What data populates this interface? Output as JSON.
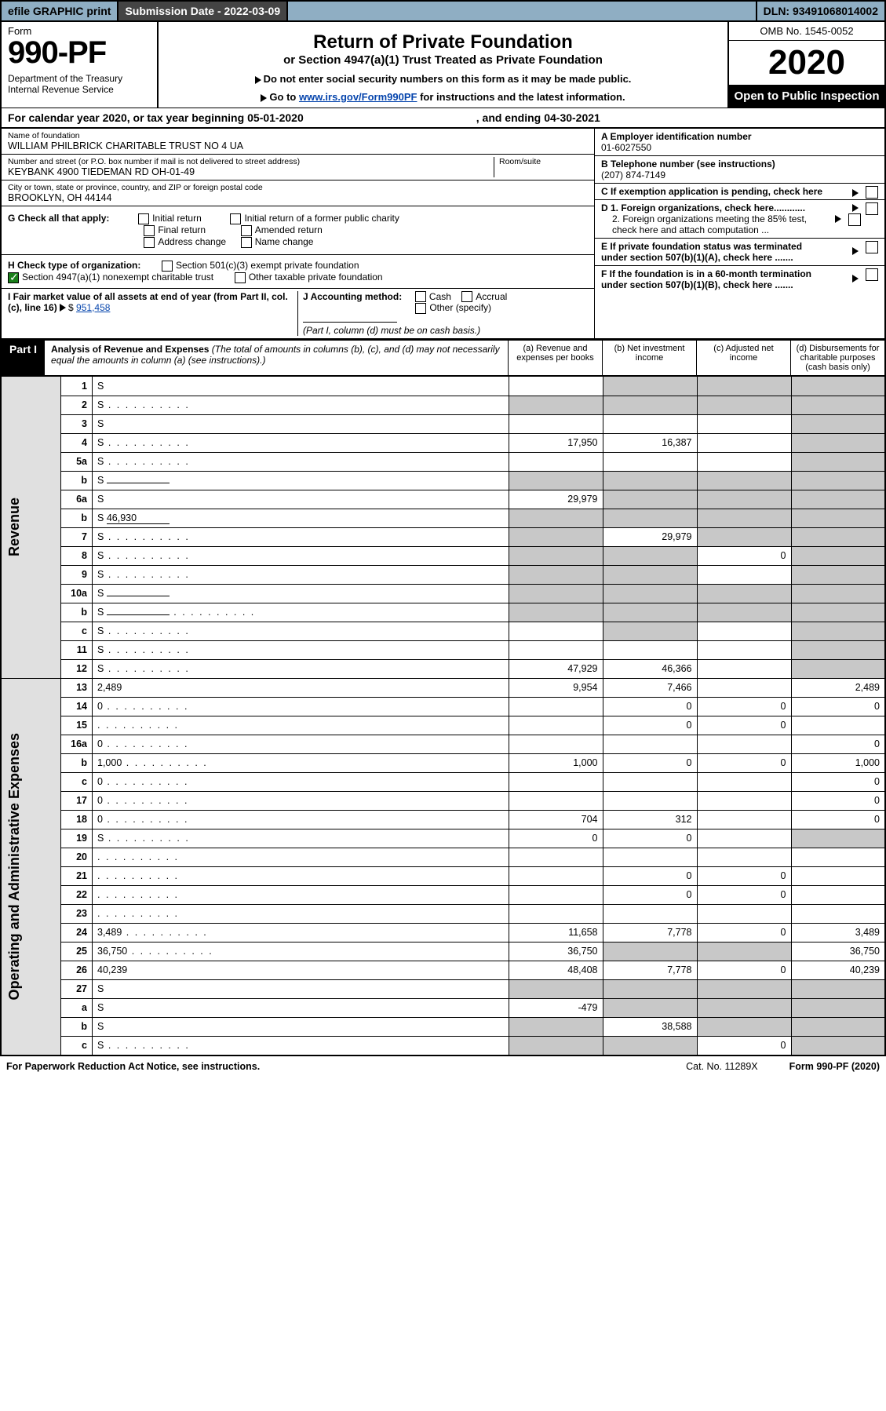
{
  "topbar": {
    "efile": "efile GRAPHIC print",
    "subdate_label": "Submission Date - 2022-03-09",
    "dln": "DLN: 93491068014002"
  },
  "header": {
    "form": "Form",
    "formno": "990-PF",
    "dept": "Department of the Treasury\nInternal Revenue Service",
    "title": "Return of Private Foundation",
    "subtitle": "or Section 4947(a)(1) Trust Treated as Private Foundation",
    "note1": "Do not enter social security numbers on this form as it may be made public.",
    "note2_pre": "Go to ",
    "note2_link": "www.irs.gov/Form990PF",
    "note2_post": " for instructions and the latest information.",
    "omb": "OMB No. 1545-0052",
    "year": "2020",
    "open": "Open to Public Inspection"
  },
  "calbar": {
    "pre": "For calendar year 2020, or tax year beginning ",
    "begin": "05-01-2020",
    "mid": ", and ending ",
    "end": "04-30-2021"
  },
  "info": {
    "name_lbl": "Name of foundation",
    "name": "WILLIAM PHILBRICK CHARITABLE TRUST NO 4 UA",
    "addr_lbl": "Number and street (or P.O. box number if mail is not delivered to street address)",
    "addr": "KEYBANK 4900 TIEDEMAN RD OH-01-49",
    "room_lbl": "Room/suite",
    "city_lbl": "City or town, state or province, country, and ZIP or foreign postal code",
    "city": "BROOKLYN, OH  44144",
    "a_lbl": "A Employer identification number",
    "a_val": "01-6027550",
    "b_lbl": "B Telephone number (see instructions)",
    "b_val": "(207) 874-7149",
    "c_lbl": "C If exemption application is pending, check here",
    "d1": "D 1. Foreign organizations, check here............",
    "d2": "2. Foreign organizations meeting the 85% test, check here and attach computation ...",
    "e": "E  If private foundation status was terminated under section 507(b)(1)(A), check here .......",
    "f": "F  If the foundation is in a 60-month termination under section 507(b)(1)(B), check here .......",
    "g_lbl": "G Check all that apply:",
    "g_opts": [
      "Initial return",
      "Final return",
      "Address change",
      "Initial return of a former public charity",
      "Amended return",
      "Name change"
    ],
    "h_lbl": "H Check type of organization:",
    "h1": "Section 501(c)(3) exempt private foundation",
    "h2": "Section 4947(a)(1) nonexempt charitable trust",
    "h3": "Other taxable private foundation",
    "i_lbl": "I Fair market value of all assets at end of year (from Part II, col. (c), line 16)",
    "i_val": "951,458",
    "j_lbl": "J Accounting method:",
    "j_opts": [
      "Cash",
      "Accrual",
      "Other (specify)"
    ],
    "j_note": "(Part I, column (d) must be on cash basis.)"
  },
  "part1": {
    "label": "Part I",
    "title": "Analysis of Revenue and Expenses",
    "note": "(The total of amounts in columns (b), (c), and (d) may not necessarily equal the amounts in column (a) (see instructions).)",
    "col_a": "(a)   Revenue and expenses per books",
    "col_b": "(b)   Net investment income",
    "col_c": "(c)   Adjusted net income",
    "col_d": "(d)   Disbursements for charitable purposes (cash basis only)"
  },
  "side_labels": {
    "rev": "Revenue",
    "oae": "Operating and Administrative Expenses"
  },
  "rows": [
    {
      "n": "1",
      "d": "S",
      "a": "",
      "b": "S",
      "c": "S"
    },
    {
      "n": "2",
      "d": "S",
      "dots": true,
      "a": "S",
      "b": "S",
      "c": "S"
    },
    {
      "n": "3",
      "d": "S",
      "a": "",
      "b": "",
      "c": ""
    },
    {
      "n": "4",
      "d": "S",
      "dots": true,
      "a": "17,950",
      "b": "16,387",
      "c": ""
    },
    {
      "n": "5a",
      "d": "S",
      "dots": true,
      "a": "",
      "b": "",
      "c": ""
    },
    {
      "n": "b",
      "d": "S",
      "uline": true,
      "a": "S",
      "b": "S",
      "c": "S"
    },
    {
      "n": "6a",
      "d": "S",
      "a": "29,979",
      "b": "S",
      "c": "S"
    },
    {
      "n": "b",
      "d": "S",
      "uline": true,
      "uval": "46,930",
      "a": "S",
      "b": "S",
      "c": "S"
    },
    {
      "n": "7",
      "d": "S",
      "dots": true,
      "a": "S",
      "b": "29,979",
      "c": "S"
    },
    {
      "n": "8",
      "d": "S",
      "dots": true,
      "a": "S",
      "b": "S",
      "c": "0"
    },
    {
      "n": "9",
      "d": "S",
      "dots": true,
      "a": "S",
      "b": "S",
      "c": ""
    },
    {
      "n": "10a",
      "d": "S",
      "uline": true,
      "a": "S",
      "b": "S",
      "c": "S"
    },
    {
      "n": "b",
      "d": "S",
      "dots": true,
      "uline": true,
      "a": "S",
      "b": "S",
      "c": "S"
    },
    {
      "n": "c",
      "d": "S",
      "dots": true,
      "a": "",
      "b": "S",
      "c": ""
    },
    {
      "n": "11",
      "d": "S",
      "dots": true,
      "a": "",
      "b": "",
      "c": ""
    },
    {
      "n": "12",
      "d": "S",
      "dots": true,
      "a": "47,929",
      "b": "46,366",
      "c": ""
    },
    {
      "n": "13",
      "d": "2,489",
      "a": "9,954",
      "b": "7,466",
      "c": ""
    },
    {
      "n": "14",
      "d": "0",
      "dots": true,
      "a": "",
      "b": "0",
      "c": "0"
    },
    {
      "n": "15",
      "d": "",
      "dots": true,
      "a": "",
      "b": "0",
      "c": "0"
    },
    {
      "n": "16a",
      "d": "0",
      "dots": true,
      "a": "",
      "b": "",
      "c": ""
    },
    {
      "n": "b",
      "d": "1,000",
      "dots": true,
      "a": "1,000",
      "b": "0",
      "c": "0"
    },
    {
      "n": "c",
      "d": "0",
      "dots": true,
      "a": "",
      "b": "",
      "c": ""
    },
    {
      "n": "17",
      "d": "0",
      "dots": true,
      "a": "",
      "b": "",
      "c": ""
    },
    {
      "n": "18",
      "d": "0",
      "dots": true,
      "a": "704",
      "b": "312",
      "c": ""
    },
    {
      "n": "19",
      "d": "S",
      "dots": true,
      "a": "0",
      "b": "0",
      "c": ""
    },
    {
      "n": "20",
      "d": "",
      "dots": true,
      "a": "",
      "b": "",
      "c": ""
    },
    {
      "n": "21",
      "d": "",
      "dots": true,
      "a": "",
      "b": "0",
      "c": "0"
    },
    {
      "n": "22",
      "d": "",
      "dots": true,
      "a": "",
      "b": "0",
      "c": "0"
    },
    {
      "n": "23",
      "d": "",
      "dots": true,
      "a": "",
      "b": "",
      "c": ""
    },
    {
      "n": "24",
      "d": "3,489",
      "dots": true,
      "a": "11,658",
      "b": "7,778",
      "c": "0"
    },
    {
      "n": "25",
      "d": "36,750",
      "dots": true,
      "a": "36,750",
      "b": "S",
      "c": "S"
    },
    {
      "n": "26",
      "d": "40,239",
      "a": "48,408",
      "b": "7,778",
      "c": "0"
    },
    {
      "n": "27",
      "d": "S",
      "a": "S",
      "b": "S",
      "c": "S"
    },
    {
      "n": "a",
      "d": "S",
      "a": "-479",
      "b": "S",
      "c": "S"
    },
    {
      "n": "b",
      "d": "S",
      "a": "S",
      "b": "38,588",
      "c": "S"
    },
    {
      "n": "c",
      "d": "S",
      "dots": true,
      "a": "S",
      "b": "S",
      "c": "0"
    }
  ],
  "footer": {
    "left": "For Paperwork Reduction Act Notice, see instructions.",
    "mid": "Cat. No. 11289X",
    "right": "Form 990-PF (2020)"
  }
}
